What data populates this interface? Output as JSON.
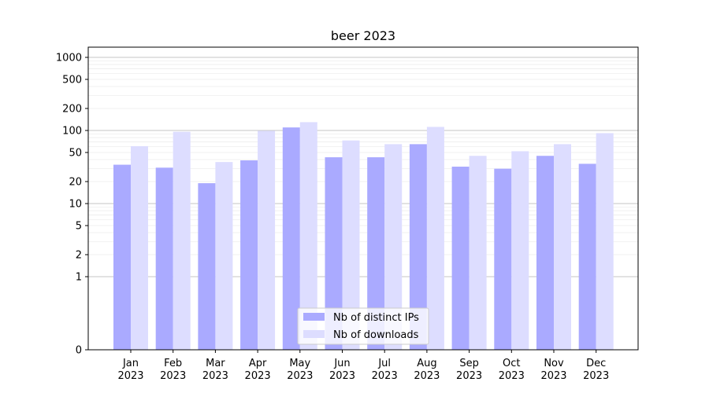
{
  "chart_data": {
    "type": "bar",
    "title": "beer 2023",
    "xlabel": "",
    "ylabel": "",
    "y_scale": "symlog",
    "ylim": [
      0,
      1300
    ],
    "y_ticks": [
      0,
      1,
      2,
      5,
      10,
      20,
      50,
      100,
      200,
      500,
      1000
    ],
    "grid": true,
    "legend_position": "bottom-center",
    "categories": [
      "Jan",
      "Feb",
      "Mar",
      "Apr",
      "May",
      "Jun",
      "Jul",
      "Aug",
      "Sep",
      "Oct",
      "Nov",
      "Dec"
    ],
    "category_year": "2023",
    "series": [
      {
        "name": "Nb of distinct IPs",
        "color": "#aaaaff",
        "values": [
          34,
          31,
          19,
          39,
          110,
          43,
          43,
          65,
          32,
          30,
          45,
          35
        ]
      },
      {
        "name": "Nb of downloads",
        "color": "#ddddff",
        "values": [
          61,
          96,
          37,
          99,
          130,
          73,
          65,
          112,
          45,
          52,
          65,
          92
        ]
      }
    ]
  }
}
